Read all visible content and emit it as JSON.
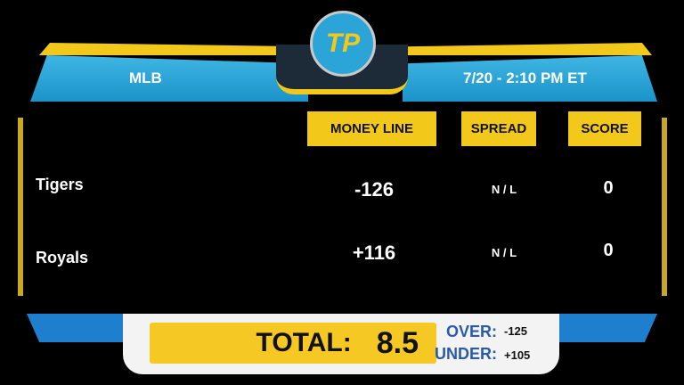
{
  "header": {
    "league": "MLB",
    "datetime": "7/20 - 2:10 PM ET",
    "logo": "TP"
  },
  "columns": [
    "MONEY LINE",
    "SPREAD",
    "SCORE"
  ],
  "teams": [
    {
      "name": "Tigers",
      "money_line": "-126",
      "spread": "N / L",
      "score": "0"
    },
    {
      "name": "Royals",
      "money_line": "+116",
      "spread": "N / L",
      "score": "0"
    }
  ],
  "total": {
    "label": "TOTAL:",
    "value": "8.5",
    "over_label": "OVER:",
    "over_odds": "-125",
    "under_label": "UNDER:",
    "under_odds": "+105"
  },
  "colors": {
    "accent_yellow": "#f2c91a",
    "header_blue": "#2ba5d8",
    "over_under_blue": "#2a5aa8"
  }
}
